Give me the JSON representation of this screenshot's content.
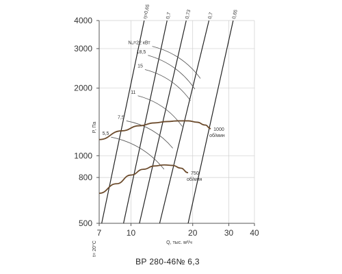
{
  "chart_data": {
    "type": "line",
    "title": "ВР 280-46№ 6,3",
    "xlabel": "Q, тыс. м³/ч",
    "ylabel": "P, Па",
    "corner_label": "t= 20°C",
    "xscale": "log",
    "yscale": "log",
    "xlim": [
      7,
      40
    ],
    "ylim": [
      500,
      4000
    ],
    "x_ticks": [
      7,
      10,
      20,
      30,
      40
    ],
    "y_ticks": [
      500,
      800,
      1000,
      2000,
      3000,
      4000
    ],
    "grid": true,
    "efficiency_lines": [
      {
        "label": "η=0,65",
        "x": [
          7.2,
          11.6
        ]
      },
      {
        "label": "0,7",
        "x": [
          9.2,
          15.0
        ]
      },
      {
        "label": "0,73",
        "x": [
          11.0,
          18.6
        ]
      },
      {
        "label": "0,7",
        "x": [
          13.8,
          24.0
        ]
      },
      {
        "label": "0,65",
        "x": [
          19.0,
          31.5
        ]
      }
    ],
    "power_lines": [
      {
        "label": "Nᵤ=22 кВт",
        "points": [
          [
            12.7,
            3070
          ],
          [
            21.8,
            2210
          ]
        ]
      },
      {
        "label": "18,5",
        "points": [
          [
            12.1,
            2800
          ],
          [
            20.5,
            1980
          ]
        ]
      },
      {
        "label": "15",
        "points": [
          [
            11.7,
            2420
          ],
          [
            19.5,
            1760
          ]
        ]
      },
      {
        "label": "11",
        "points": [
          [
            10.8,
            1850
          ],
          [
            17.8,
            1350
          ]
        ]
      },
      {
        "label": "7,5",
        "points": [
          [
            9.5,
            1430
          ],
          [
            16.0,
            1080
          ]
        ]
      },
      {
        "label": "5,5",
        "points": [
          [
            8.0,
            1210
          ],
          [
            14.5,
            870
          ]
        ]
      }
    ],
    "series": [
      {
        "name": "1000 об/мин",
        "x": [
          7.0,
          9.0,
          11.0,
          13.0,
          15.0,
          17.0,
          19.0,
          21.0,
          23.0,
          24.5
        ],
        "y": [
          1180,
          1290,
          1360,
          1400,
          1420,
          1430,
          1430,
          1410,
          1370,
          1320
        ]
      },
      {
        "name": "750 об/мин",
        "x": [
          7.0,
          8.5,
          10.0,
          11.5,
          13.0,
          14.5,
          16.0,
          17.5,
          19.0
        ],
        "y": [
          680,
          750,
          820,
          870,
          900,
          910,
          905,
          880,
          840
        ]
      }
    ]
  }
}
